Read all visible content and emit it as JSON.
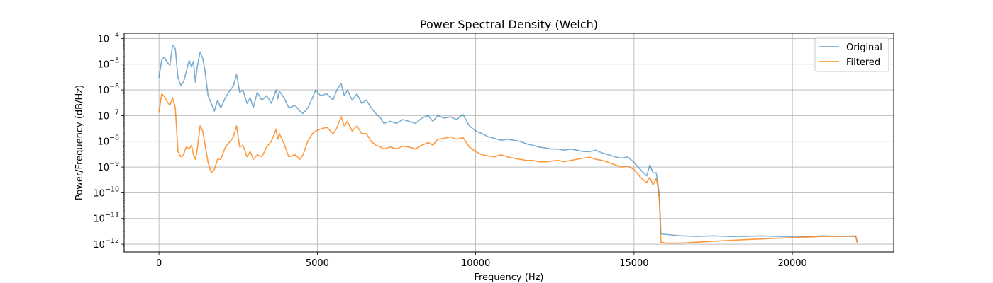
{
  "chart_data": {
    "type": "line",
    "title": "Power Spectral Density (Welch)",
    "xlabel": "Frequency (Hz)",
    "ylabel": "Power/Frequency (dB/Hz)",
    "xlim": [
      -1100,
      23200
    ],
    "ylim": [
      5e-13,
      0.00016
    ],
    "yscale": "log",
    "grid": true,
    "legend_position": "upper right",
    "xticks": [
      0,
      5000,
      10000,
      15000,
      20000
    ],
    "xtick_labels": [
      "0",
      "5000",
      "10000",
      "15000",
      "20000"
    ],
    "yticks": [
      1e-12,
      1e-11,
      1e-10,
      1e-09,
      1e-08,
      1e-07,
      1e-06,
      1e-05,
      0.0001
    ],
    "ytick_labels": [
      {
        "base": "10",
        "exp": "−12"
      },
      {
        "base": "10",
        "exp": "−11"
      },
      {
        "base": "10",
        "exp": "−10"
      },
      {
        "base": "10",
        "exp": "−9"
      },
      {
        "base": "10",
        "exp": "−8"
      },
      {
        "base": "10",
        "exp": "−7"
      },
      {
        "base": "10",
        "exp": "−6"
      },
      {
        "base": "10",
        "exp": "−5"
      },
      {
        "base": "10",
        "exp": "−4"
      }
    ],
    "series": [
      {
        "name": "Original",
        "color": "#1f77b4",
        "opacity": 0.6,
        "points": [
          [
            0,
            3e-06
          ],
          [
            86,
            1.5e-05
          ],
          [
            172,
            1.9e-05
          ],
          [
            258,
            1.2e-05
          ],
          [
            344,
            9e-06
          ],
          [
            430,
            5.5e-05
          ],
          [
            516,
            4e-05
          ],
          [
            600,
            3e-06
          ],
          [
            690,
            1.5e-06
          ],
          [
            775,
            2e-06
          ],
          [
            860,
            5e-06
          ],
          [
            950,
            1.4e-05
          ],
          [
            1030,
            8e-06
          ],
          [
            1090,
            1.3e-05
          ],
          [
            1150,
            2e-06
          ],
          [
            1210,
            8e-06
          ],
          [
            1300,
            3e-05
          ],
          [
            1380,
            1.7e-05
          ],
          [
            1450,
            6e-06
          ],
          [
            1550,
            6e-07
          ],
          [
            1650,
            3e-07
          ],
          [
            1750,
            1.5e-07
          ],
          [
            1850,
            4e-07
          ],
          [
            1950,
            2e-07
          ],
          [
            2100,
            5e-07
          ],
          [
            2250,
            1e-06
          ],
          [
            2350,
            1.4e-06
          ],
          [
            2450,
            4e-06
          ],
          [
            2550,
            8e-07
          ],
          [
            2650,
            1e-06
          ],
          [
            2780,
            3e-07
          ],
          [
            2880,
            5e-07
          ],
          [
            2980,
            2e-07
          ],
          [
            3100,
            8e-07
          ],
          [
            3250,
            4e-07
          ],
          [
            3400,
            6e-07
          ],
          [
            3550,
            3e-07
          ],
          [
            3700,
            1e-06
          ],
          [
            3750,
            4.5e-07
          ],
          [
            3800,
            9e-07
          ],
          [
            3950,
            5e-07
          ],
          [
            4100,
            2e-07
          ],
          [
            4300,
            2.5e-07
          ],
          [
            4450,
            1.5e-07
          ],
          [
            4550,
            1.2e-07
          ],
          [
            4700,
            2e-07
          ],
          [
            4850,
            5e-07
          ],
          [
            4950,
            1e-06
          ],
          [
            5100,
            6e-07
          ],
          [
            5300,
            7e-07
          ],
          [
            5500,
            4e-07
          ],
          [
            5600,
            9e-07
          ],
          [
            5750,
            1.8e-06
          ],
          [
            5850,
            6e-07
          ],
          [
            5950,
            1e-06
          ],
          [
            6100,
            4e-07
          ],
          [
            6250,
            7e-07
          ],
          [
            6400,
            3e-07
          ],
          [
            6550,
            4e-07
          ],
          [
            6700,
            2e-07
          ],
          [
            6850,
            1.2e-07
          ],
          [
            7000,
            8e-08
          ],
          [
            7100,
            5e-08
          ],
          [
            7300,
            6e-08
          ],
          [
            7500,
            5e-08
          ],
          [
            7700,
            7e-08
          ],
          [
            7900,
            6e-08
          ],
          [
            8100,
            5e-08
          ],
          [
            8300,
            8e-08
          ],
          [
            8500,
            1e-07
          ],
          [
            8650,
            6e-08
          ],
          [
            8800,
            1e-07
          ],
          [
            9000,
            8e-08
          ],
          [
            9200,
            9e-08
          ],
          [
            9400,
            7e-08
          ],
          [
            9600,
            1.1e-07
          ],
          [
            9800,
            4e-08
          ],
          [
            10000,
            2.5e-08
          ],
          [
            10200,
            2e-08
          ],
          [
            10400,
            1.5e-08
          ],
          [
            10600,
            1.3e-08
          ],
          [
            10800,
            1.1e-08
          ],
          [
            11000,
            1.2e-08
          ],
          [
            11200,
            1.1e-08
          ],
          [
            11400,
            1e-08
          ],
          [
            11600,
            8e-09
          ],
          [
            11800,
            7e-09
          ],
          [
            12000,
            6e-09
          ],
          [
            12200,
            5.5e-09
          ],
          [
            12400,
            5e-09
          ],
          [
            12600,
            5e-09
          ],
          [
            12800,
            4.5e-09
          ],
          [
            13000,
            5e-09
          ],
          [
            13200,
            4.5e-09
          ],
          [
            13400,
            4e-09
          ],
          [
            13600,
            4e-09
          ],
          [
            13800,
            4.5e-09
          ],
          [
            14000,
            3.5e-09
          ],
          [
            14200,
            3e-09
          ],
          [
            14400,
            2.5e-09
          ],
          [
            14600,
            2.2e-09
          ],
          [
            14800,
            2.5e-09
          ],
          [
            15000,
            1.5e-09
          ],
          [
            15200,
            8e-10
          ],
          [
            15400,
            4.5e-10
          ],
          [
            15500,
            1.2e-09
          ],
          [
            15600,
            6e-10
          ],
          [
            15700,
            6e-10
          ],
          [
            15750,
            2.5e-10
          ],
          [
            15800,
            8e-11
          ],
          [
            15850,
            2.5e-12
          ],
          [
            16000,
            2.4e-12
          ],
          [
            16500,
            2.1e-12
          ],
          [
            17000,
            2e-12
          ],
          [
            17500,
            2.1e-12
          ],
          [
            18000,
            2e-12
          ],
          [
            18500,
            2e-12
          ],
          [
            19000,
            2.1e-12
          ],
          [
            19500,
            2e-12
          ],
          [
            20000,
            2e-12
          ],
          [
            20500,
            2e-12
          ],
          [
            21000,
            2.1e-12
          ],
          [
            21500,
            2e-12
          ],
          [
            22000,
            2e-12
          ],
          [
            22050,
            1.2e-12
          ]
        ]
      },
      {
        "name": "Filtered",
        "color": "#ff7f0e",
        "opacity": 0.8,
        "points": [
          [
            0,
            1.3e-07
          ],
          [
            86,
            7e-07
          ],
          [
            172,
            5.5e-07
          ],
          [
            258,
            3.5e-07
          ],
          [
            344,
            2.5e-07
          ],
          [
            430,
            5e-07
          ],
          [
            516,
            2e-07
          ],
          [
            600,
            4e-09
          ],
          [
            690,
            2.5e-09
          ],
          [
            775,
            3e-09
          ],
          [
            860,
            6e-09
          ],
          [
            950,
            5e-09
          ],
          [
            1030,
            7e-09
          ],
          [
            1090,
            3e-09
          ],
          [
            1150,
            2e-09
          ],
          [
            1210,
            5e-09
          ],
          [
            1300,
            4e-08
          ],
          [
            1380,
            2.5e-08
          ],
          [
            1450,
            8e-09
          ],
          [
            1550,
            1.5e-09
          ],
          [
            1650,
            6e-10
          ],
          [
            1750,
            8e-10
          ],
          [
            1850,
            2e-09
          ],
          [
            1950,
            2e-09
          ],
          [
            2100,
            6e-09
          ],
          [
            2250,
            1e-08
          ],
          [
            2350,
            1.5e-08
          ],
          [
            2450,
            4e-08
          ],
          [
            2550,
            6e-09
          ],
          [
            2650,
            7e-09
          ],
          [
            2780,
            2.5e-09
          ],
          [
            2880,
            4e-09
          ],
          [
            2980,
            2e-09
          ],
          [
            3100,
            3e-09
          ],
          [
            3250,
            2.5e-09
          ],
          [
            3400,
            6e-09
          ],
          [
            3550,
            1e-08
          ],
          [
            3700,
            3e-08
          ],
          [
            3750,
            1.2e-08
          ],
          [
            3800,
            2e-08
          ],
          [
            3950,
            8e-09
          ],
          [
            4100,
            2.5e-09
          ],
          [
            4300,
            3e-09
          ],
          [
            4450,
            2e-09
          ],
          [
            4550,
            3e-09
          ],
          [
            4700,
            1e-08
          ],
          [
            4850,
            2e-08
          ],
          [
            4950,
            2.5e-08
          ],
          [
            5100,
            3e-08
          ],
          [
            5300,
            3.5e-08
          ],
          [
            5500,
            2e-08
          ],
          [
            5600,
            3e-08
          ],
          [
            5750,
            9e-08
          ],
          [
            5850,
            4e-08
          ],
          [
            5950,
            6e-08
          ],
          [
            6100,
            2.5e-08
          ],
          [
            6250,
            4e-08
          ],
          [
            6400,
            2e-08
          ],
          [
            6550,
            2e-08
          ],
          [
            6700,
            1e-08
          ],
          [
            6850,
            7e-09
          ],
          [
            7000,
            6e-09
          ],
          [
            7100,
            5e-09
          ],
          [
            7300,
            6e-09
          ],
          [
            7500,
            5e-09
          ],
          [
            7700,
            6.5e-09
          ],
          [
            7900,
            6e-09
          ],
          [
            8100,
            5e-09
          ],
          [
            8300,
            7e-09
          ],
          [
            8500,
            9e-09
          ],
          [
            8650,
            7e-09
          ],
          [
            8800,
            1.2e-08
          ],
          [
            9000,
            1.3e-08
          ],
          [
            9200,
            1.5e-08
          ],
          [
            9400,
            1.2e-08
          ],
          [
            9600,
            1.4e-08
          ],
          [
            9800,
            6e-09
          ],
          [
            10000,
            4e-09
          ],
          [
            10200,
            3e-09
          ],
          [
            10400,
            2.7e-09
          ],
          [
            10600,
            2.5e-09
          ],
          [
            10800,
            3e-09
          ],
          [
            11000,
            2.5e-09
          ],
          [
            11200,
            2.2e-09
          ],
          [
            11400,
            2e-09
          ],
          [
            11600,
            1.8e-09
          ],
          [
            11800,
            1.8e-09
          ],
          [
            12000,
            1.6e-09
          ],
          [
            12200,
            1.6e-09
          ],
          [
            12400,
            1.7e-09
          ],
          [
            12600,
            1.8e-09
          ],
          [
            12800,
            1.6e-09
          ],
          [
            13000,
            1.8e-09
          ],
          [
            13200,
            2e-09
          ],
          [
            13400,
            2.2e-09
          ],
          [
            13600,
            2.4e-09
          ],
          [
            13800,
            2e-09
          ],
          [
            14000,
            1.8e-09
          ],
          [
            14200,
            1.5e-09
          ],
          [
            14400,
            1.2e-09
          ],
          [
            14600,
            1e-09
          ],
          [
            14800,
            1.1e-09
          ],
          [
            15000,
            8e-10
          ],
          [
            15200,
            4e-10
          ],
          [
            15400,
            2.5e-10
          ],
          [
            15500,
            4e-10
          ],
          [
            15600,
            2e-10
          ],
          [
            15700,
            3.5e-10
          ],
          [
            15750,
            1.8e-10
          ],
          [
            15800,
            5e-11
          ],
          [
            15850,
            1.2e-12
          ],
          [
            16000,
            1.1e-12
          ],
          [
            16500,
            1.1e-12
          ],
          [
            17000,
            1.2e-12
          ],
          [
            17500,
            1.3e-12
          ],
          [
            18000,
            1.4e-12
          ],
          [
            18500,
            1.5e-12
          ],
          [
            19000,
            1.6e-12
          ],
          [
            19500,
            1.7e-12
          ],
          [
            20000,
            1.8e-12
          ],
          [
            20500,
            1.9e-12
          ],
          [
            21000,
            2e-12
          ],
          [
            21500,
            2e-12
          ],
          [
            22000,
            2.1e-12
          ],
          [
            22050,
            1.1e-12
          ]
        ]
      }
    ]
  }
}
